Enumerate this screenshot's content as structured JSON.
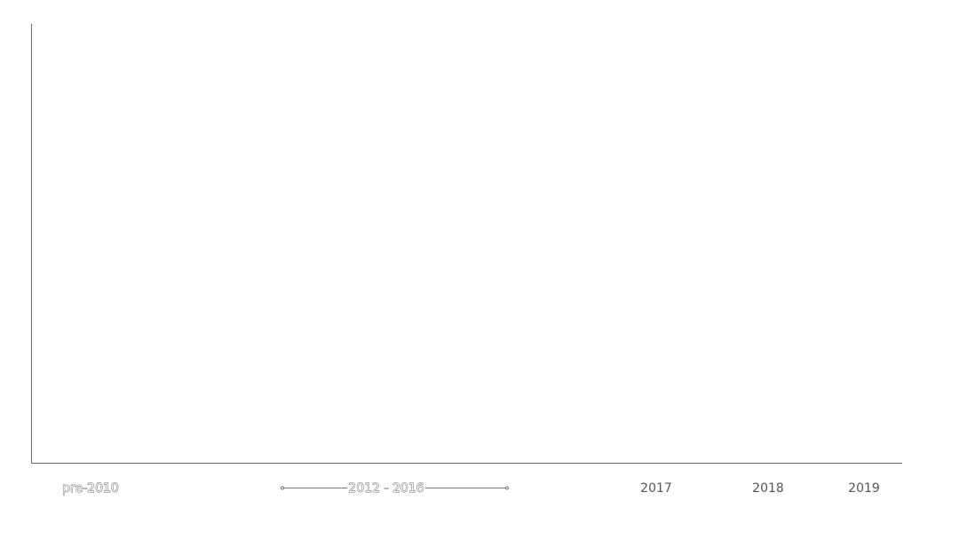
{
  "chart_data": {
    "type": "bar",
    "title": "",
    "xlabel": "",
    "ylabel": "",
    "categories": [
      {
        "label": "pre-2010",
        "style": "outlined"
      },
      {
        "label": "2012 - 2016",
        "style": "outlined",
        "range": true
      },
      {
        "label": "2017",
        "style": "solid"
      },
      {
        "label": "2018",
        "style": "solid"
      },
      {
        "label": "2019",
        "style": "solid"
      }
    ],
    "series": [],
    "grid": false,
    "legend": "none"
  }
}
